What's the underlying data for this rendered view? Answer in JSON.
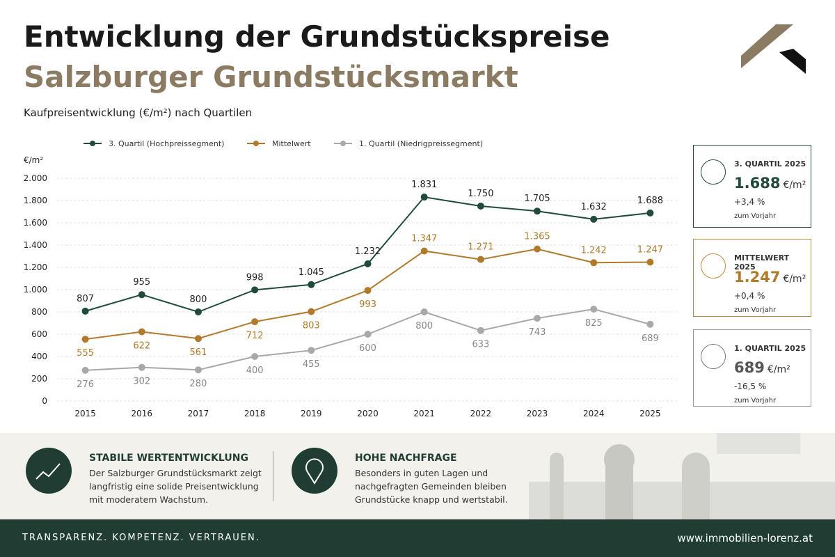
{
  "header": {
    "title": "Entwicklung der Grundstückspreise",
    "subtitle": "Salzburger Grundstücksmarkt"
  },
  "chart_data": {
    "type": "line",
    "title": "Kaufpreisentwicklung (€/m²) nach Quartilen",
    "y_label": "€/m²",
    "categories": [
      "2015",
      "2016",
      "2017",
      "2018",
      "2019",
      "2020",
      "2021",
      "2022",
      "2023",
      "2024",
      "2025"
    ],
    "series": [
      {
        "name": "3. Quartil (Hochpreissegment)",
        "color": "#1f4a3c",
        "values": [
          807,
          955,
          800,
          998,
          1045,
          1232,
          1831,
          1750,
          1705,
          1632,
          1688
        ],
        "value_labels": [
          "807",
          "955",
          "800",
          "998",
          "1.045",
          "1.232",
          "1.831",
          "1.750",
          "1.705",
          "1.632",
          "1.688"
        ]
      },
      {
        "name": "Mittelwert",
        "color": "#b07a2a",
        "values": [
          555,
          622,
          561,
          712,
          803,
          993,
          1347,
          1271,
          1365,
          1242,
          1247
        ],
        "value_labels": [
          "555",
          "622",
          "561",
          "712",
          "803",
          "993",
          "1.347",
          "1.271",
          "1.365",
          "1.242",
          "1.247"
        ]
      },
      {
        "name": "1. Quartil (Niedrigpreissegment)",
        "color": "#a8a8a8",
        "values": [
          276,
          302,
          280,
          400,
          455,
          600,
          800,
          633,
          743,
          825,
          689
        ],
        "value_labels": [
          "276",
          "302",
          "280",
          "400",
          "455",
          "600",
          "800",
          "633",
          "743",
          "825",
          "689"
        ]
      }
    ],
    "ylim": [
      0,
      2000
    ],
    "yticks": [
      0,
      200,
      400,
      600,
      800,
      {
        "value": 1000,
        "label": "1.000"
      },
      {
        "value": 1200,
        "label": "1.200"
      },
      {
        "value": 1400,
        "label": "1.400"
      },
      {
        "value": 1600,
        "label": "1.600"
      },
      {
        "value": 1800,
        "label": "1.800"
      },
      {
        "value": 2000,
        "label": "2.000"
      }
    ],
    "grid": true,
    "legend": "top"
  },
  "cards": [
    {
      "title": "3. QUARTIL 2025",
      "value": "1.688",
      "unit": "€/m²",
      "change": "+3,4 %",
      "note": "zum Vorjahr"
    },
    {
      "title": "MITTELWERT 2025",
      "value": "1.247",
      "unit": "€/m²",
      "change": "+0,4 %",
      "note": "zum Vorjahr"
    },
    {
      "title": "1. QUARTIL 2025",
      "value": "689",
      "unit": "€/m²",
      "change": "-16,5 %",
      "note": "zum Vorjahr"
    }
  ],
  "features": [
    {
      "title": "STABILE WERTENTWICKLUNG",
      "text": "Der Salzburger Grundstücksmarkt zeigt langfristig eine solide Preisentwicklung mit moderatem Wachstum."
    },
    {
      "title": "HOHE NACHFRAGE",
      "text": "Besonders in guten Lagen und nachgefragten Gemeinden bleiben Grundstücke knapp und wertstabil."
    }
  ],
  "footer": {
    "slogan": "TRANSPARENZ. KOMPETENZ. VERTRAUEN.",
    "url": "www.immobilien-lorenz.at"
  }
}
